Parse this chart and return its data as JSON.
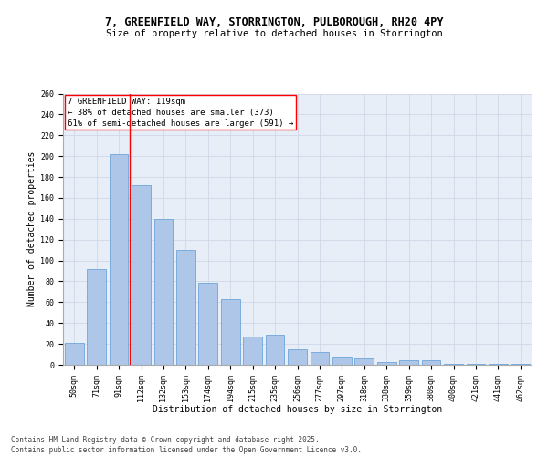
{
  "title_line1": "7, GREENFIELD WAY, STORRINGTON, PULBOROUGH, RH20 4PY",
  "title_line2": "Size of property relative to detached houses in Storrington",
  "xlabel": "Distribution of detached houses by size in Storrington",
  "ylabel": "Number of detached properties",
  "categories": [
    "50sqm",
    "71sqm",
    "91sqm",
    "112sqm",
    "132sqm",
    "153sqm",
    "174sqm",
    "194sqm",
    "215sqm",
    "235sqm",
    "256sqm",
    "277sqm",
    "297sqm",
    "318sqm",
    "338sqm",
    "359sqm",
    "380sqm",
    "400sqm",
    "421sqm",
    "441sqm",
    "462sqm"
  ],
  "values": [
    21,
    92,
    202,
    172,
    140,
    110,
    79,
    63,
    27,
    29,
    15,
    12,
    8,
    6,
    3,
    4,
    4,
    1,
    1,
    1,
    1
  ],
  "bar_color": "#aec6e8",
  "bar_edge_color": "#5b9bd5",
  "grid_color": "#d0d8e8",
  "background_color": "#e8eef8",
  "vline_x": 2.5,
  "vline_color": "red",
  "annotation_text": "7 GREENFIELD WAY: 119sqm\n← 38% of detached houses are smaller (373)\n61% of semi-detached houses are larger (591) →",
  "annotation_box_color": "white",
  "annotation_box_edge": "red",
  "ylim": [
    0,
    260
  ],
  "yticks": [
    0,
    20,
    40,
    60,
    80,
    100,
    120,
    140,
    160,
    180,
    200,
    220,
    240,
    260
  ],
  "footnote": "Contains HM Land Registry data © Crown copyright and database right 2025.\nContains public sector information licensed under the Open Government Licence v3.0.",
  "title_fontsize": 8.5,
  "subtitle_fontsize": 7.5,
  "tick_fontsize": 6.0,
  "label_fontsize": 7.0,
  "annotation_fontsize": 6.5,
  "footnote_fontsize": 5.5
}
